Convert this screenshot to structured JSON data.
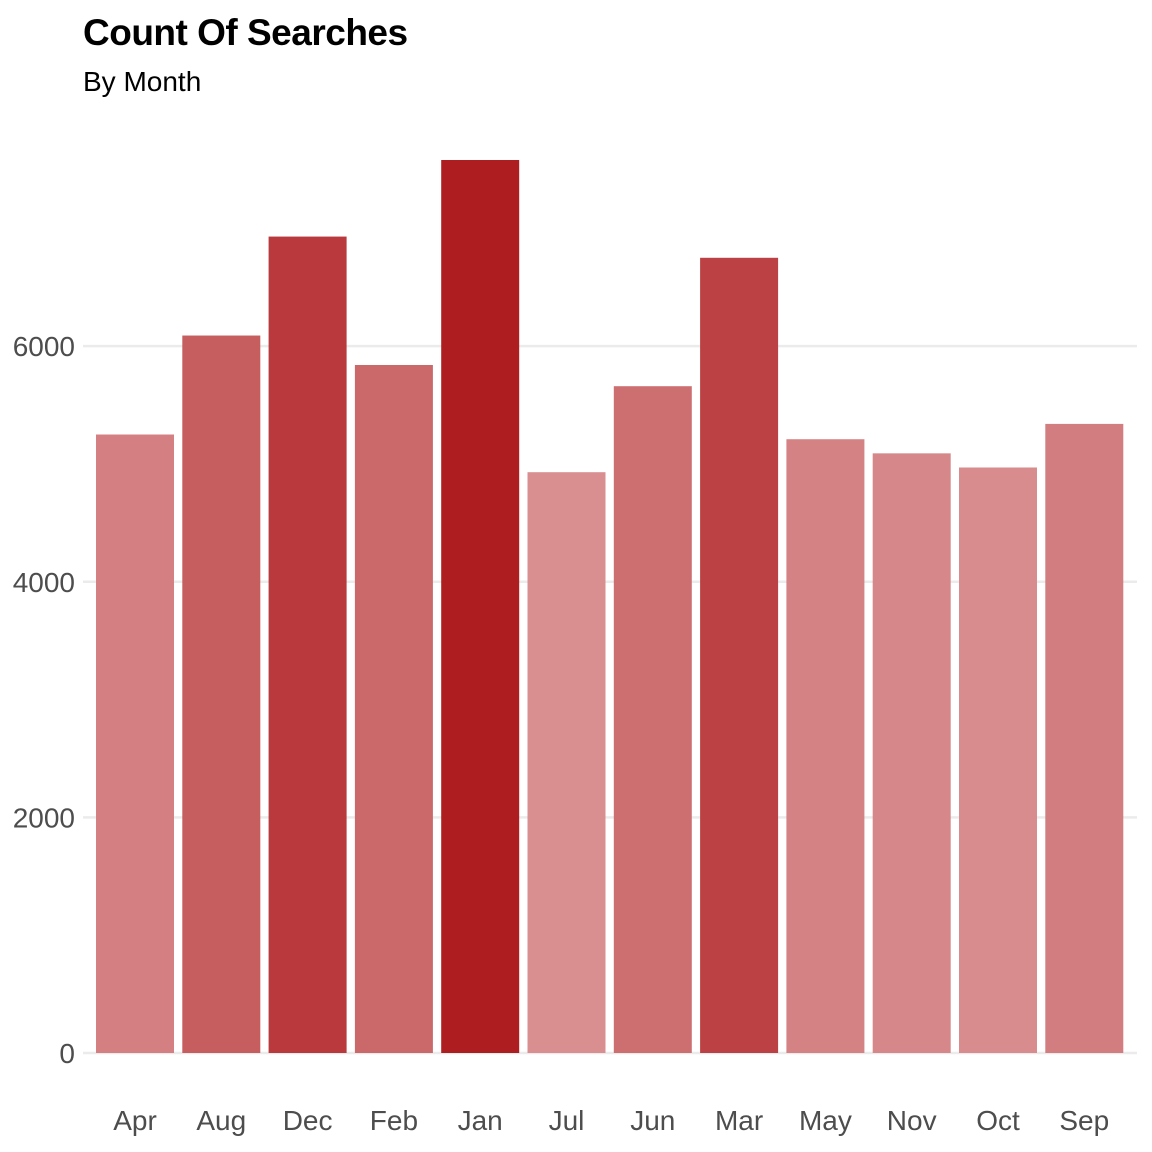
{
  "chart_data": {
    "type": "bar",
    "title": "Count Of Searches",
    "subtitle": "By Month",
    "xlabel": "",
    "ylabel": "",
    "categories": [
      "Apr",
      "Aug",
      "Dec",
      "Feb",
      "Jan",
      "Jul",
      "Jun",
      "Mar",
      "May",
      "Nov",
      "Oct",
      "Sep"
    ],
    "values": [
      5250,
      6090,
      6930,
      5840,
      7580,
      4930,
      5660,
      6750,
      5210,
      5090,
      4970,
      5340
    ],
    "ylim": [
      0,
      7580
    ],
    "yticks": [
      0,
      2000,
      4000,
      6000
    ],
    "ytick_labels": [
      "0",
      "2000",
      "4000",
      "6000"
    ],
    "grid": true,
    "legend": "none",
    "color_low": "#d98e90",
    "color_high": "#ae1e21",
    "gridline_color": "#ebebeb"
  }
}
